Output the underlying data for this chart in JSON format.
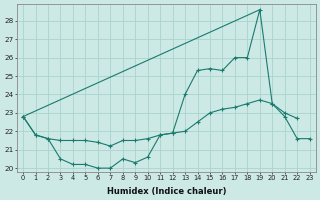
{
  "xlabel": "Humidex (Indice chaleur)",
  "bg_color": "#cce9e5",
  "grid_color": "#aad4cf",
  "line_color": "#1a7a6e",
  "x_values": [
    0,
    1,
    2,
    3,
    4,
    5,
    6,
    7,
    8,
    9,
    10,
    11,
    12,
    13,
    14,
    15,
    16,
    17,
    18,
    19,
    20,
    21,
    22,
    23
  ],
  "series1_y": [
    22.8,
    21.8,
    21.6,
    20.5,
    20.2,
    20.2,
    20.0,
    20.0,
    20.5,
    20.3,
    20.6,
    21.8,
    21.9,
    24.0,
    25.3,
    25.4,
    25.3,
    26.0,
    26.0,
    28.6,
    23.5,
    23.0,
    22.7,
    null
  ],
  "series2_y": [
    22.8,
    21.8,
    21.6,
    21.5,
    21.5,
    21.5,
    21.4,
    21.2,
    21.5,
    21.5,
    21.6,
    21.8,
    21.9,
    22.0,
    22.5,
    23.0,
    23.2,
    23.3,
    23.5,
    23.7,
    23.5,
    22.8,
    21.6,
    21.6
  ],
  "series3_x": [
    0,
    19
  ],
  "series3_y": [
    22.8,
    28.6
  ],
  "ylim_min": 19.8,
  "ylim_max": 28.9,
  "yticks": [
    20,
    21,
    22,
    23,
    24,
    25,
    26,
    27,
    28
  ],
  "xticks": [
    0,
    1,
    2,
    3,
    4,
    5,
    6,
    7,
    8,
    9,
    10,
    11,
    12,
    13,
    14,
    15,
    16,
    17,
    18,
    19,
    20,
    21,
    22,
    23
  ],
  "xlim_min": -0.5,
  "xlim_max": 23.5
}
